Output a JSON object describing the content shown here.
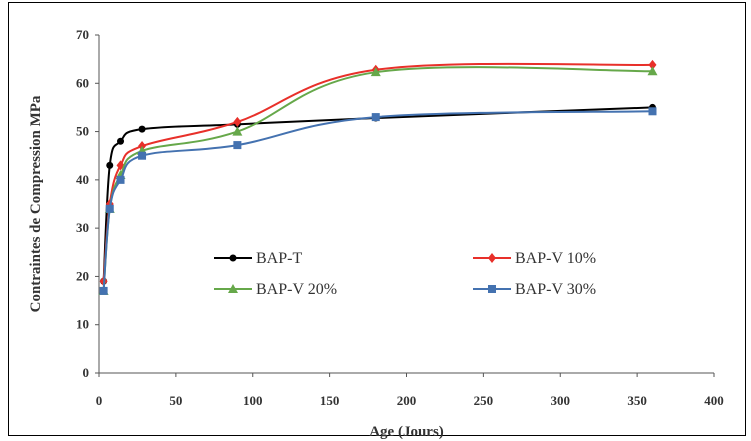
{
  "chart_data": {
    "type": "line",
    "xlabel": "Age (Jours)",
    "ylabel": "Contraintes de Compression MPa",
    "xlim": [
      0,
      400
    ],
    "ylim": [
      0,
      70
    ],
    "xticks": [
      0,
      50,
      100,
      150,
      200,
      250,
      300,
      350,
      400
    ],
    "yticks": [
      0,
      10,
      20,
      30,
      40,
      50,
      60,
      70
    ],
    "grid": false,
    "legend_position": "inside-center",
    "series": [
      {
        "name": "BAP-T",
        "color": "#000000",
        "marker": "circle",
        "x": [
          3,
          7,
          14,
          28,
          90,
          180,
          360
        ],
        "y": [
          19,
          43,
          48,
          50.5,
          51.5,
          52.8,
          55
        ]
      },
      {
        "name": "BAP-V 10%",
        "color": "#e8302a",
        "marker": "diamond",
        "x": [
          3,
          7,
          14,
          28,
          90,
          180,
          360
        ],
        "y": [
          19,
          35,
          43,
          47,
          52,
          62.8,
          63.8
        ]
      },
      {
        "name": "BAP-V 20%",
        "color": "#66a84a",
        "marker": "triangle",
        "x": [
          3,
          7,
          14,
          28,
          90,
          180,
          360
        ],
        "y": [
          17,
          34,
          41,
          46,
          50,
          62.3,
          62.5
        ]
      },
      {
        "name": "BAP-V 30%",
        "color": "#4472b0",
        "marker": "square",
        "x": [
          3,
          7,
          14,
          28,
          90,
          180,
          360
        ],
        "y": [
          17,
          34,
          40,
          45,
          47.2,
          53,
          54.2
        ]
      }
    ]
  }
}
